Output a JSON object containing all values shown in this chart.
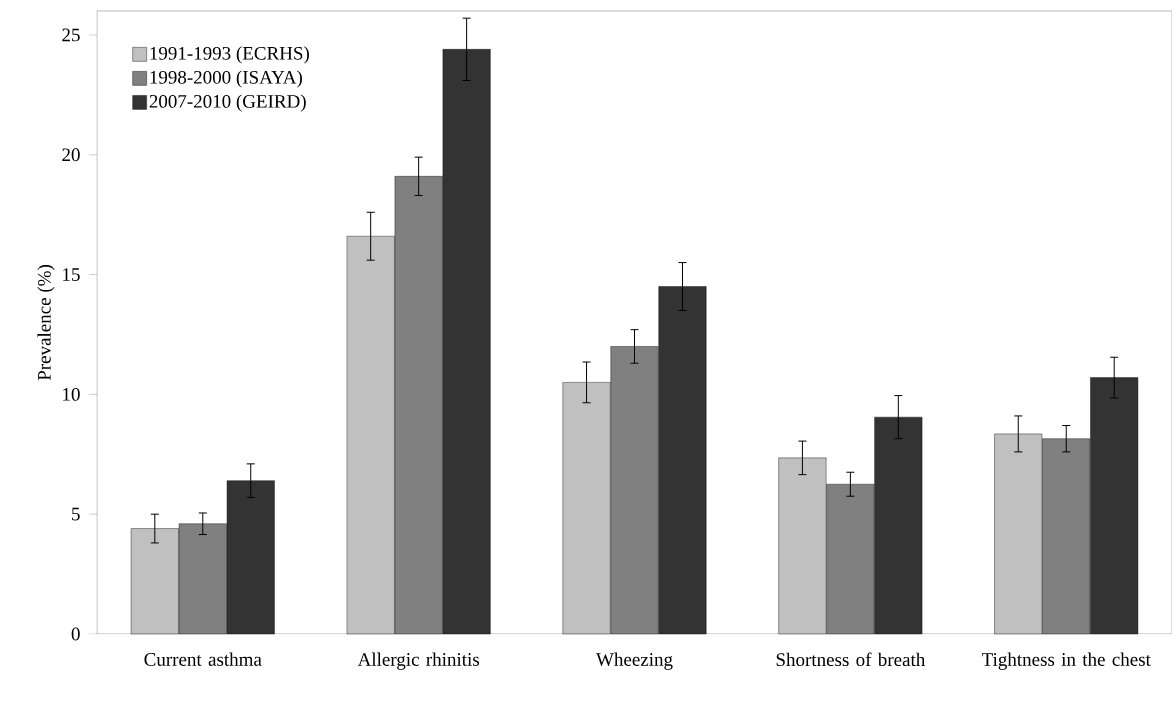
{
  "chart_data": {
    "type": "bar",
    "ylabel": "Prevalence (%)",
    "categories": [
      "Current asthma",
      "Allergic rhinitis",
      "Wheezing",
      "Shortness of breath",
      "Tightness in the chest"
    ],
    "series": [
      {
        "name": "1991-1993 (ECRHS)",
        "color": "#c0c0c0",
        "values": [
          4.4,
          16.6,
          10.5,
          7.35,
          8.35
        ],
        "errors": [
          0.6,
          1.0,
          0.85,
          0.7,
          0.75
        ]
      },
      {
        "name": "1998-2000 (ISAYA)",
        "color": "#808080",
        "values": [
          4.6,
          19.1,
          12.0,
          6.25,
          8.15
        ],
        "errors": [
          0.45,
          0.8,
          0.7,
          0.5,
          0.55
        ]
      },
      {
        "name": "2007-2010 (GEIRD)",
        "color": "#333333",
        "values": [
          6.4,
          24.4,
          14.5,
          9.05,
          10.7
        ],
        "errors": [
          0.7,
          1.3,
          1.0,
          0.9,
          0.85
        ]
      }
    ],
    "ylim": [
      0,
      26
    ],
    "yticks": [
      0,
      5,
      10,
      15,
      20,
      25
    ],
    "grid": false,
    "legend": "top left"
  }
}
